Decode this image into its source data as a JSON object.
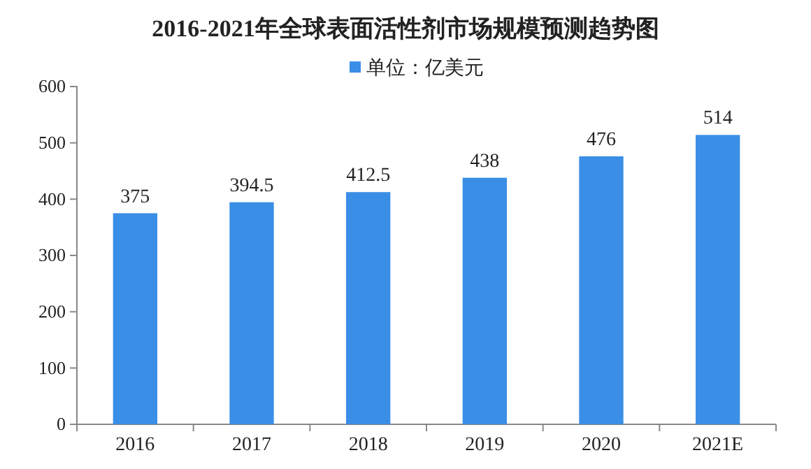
{
  "chart_data": {
    "type": "bar",
    "title": "2016-2021年全球表面活性剂市场规模预测趋势图",
    "categories": [
      "2016",
      "2017",
      "2018",
      "2019",
      "2020",
      "2021E"
    ],
    "series": [
      {
        "name": "单位：亿美元",
        "color": "#3a8ee6",
        "values": [
          375,
          394.5,
          412.5,
          438,
          476,
          514
        ]
      }
    ],
    "ylim": [
      0,
      600
    ],
    "yticks": [
      0,
      100,
      200,
      300,
      400,
      500,
      600
    ],
    "data_labels": true,
    "legend": "top",
    "grid": false
  }
}
